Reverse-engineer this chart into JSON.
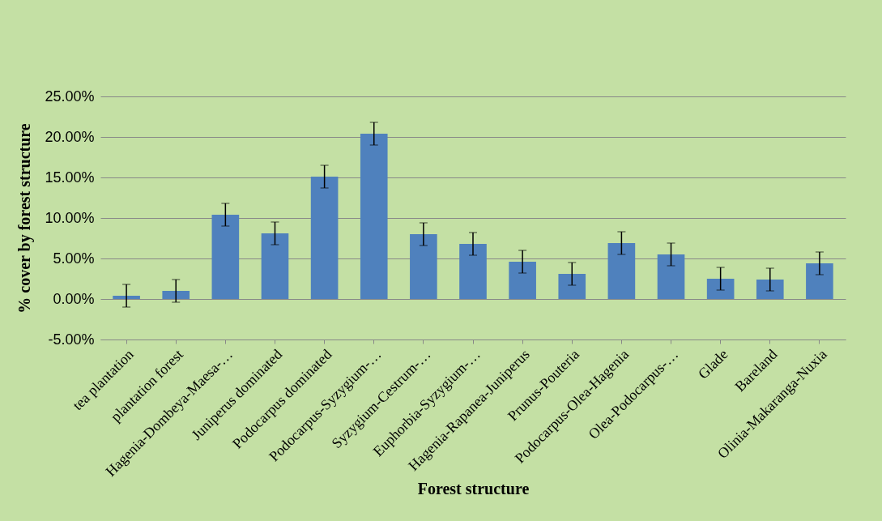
{
  "chart_data": {
    "type": "bar",
    "xlabel": "Forest structure",
    "ylabel": "% cover by forest structure",
    "categories": [
      "tea plantation",
      "plantation forest",
      "Hagenia-Dombeya-Maesa-…",
      "Juniperus dominated",
      "Podocarpus dominated",
      "Podocarpus-Syzygium-…",
      "Syzygium-Cestrum-…",
      "Euphorbia-Syzygium-…",
      "Hagenia-Rapanea-Juniperus",
      "Prunus-Pouteria",
      "Podocarpus-Olea-Hagenia",
      "Olea-Podocarpus-…",
      "Glade",
      "Bareland",
      "Olinia-Makaranga-Nuxia"
    ],
    "values": [
      0.4,
      1.0,
      10.4,
      8.1,
      15.1,
      20.4,
      8.0,
      6.8,
      4.6,
      3.1,
      6.9,
      5.5,
      2.5,
      2.4,
      4.4
    ],
    "errors": [
      1.4,
      1.4,
      1.4,
      1.4,
      1.4,
      1.4,
      1.4,
      1.4,
      1.4,
      1.4,
      1.4,
      1.4,
      1.4,
      1.4,
      1.4
    ],
    "color": "#4f81bd",
    "ylim": [
      -5,
      25
    ],
    "yticks": [
      {
        "value": -5,
        "label": "-5.00%"
      },
      {
        "value": 0,
        "label": "0.00%"
      },
      {
        "value": 5,
        "label": "5.00%"
      },
      {
        "value": 10,
        "label": "10.00%"
      },
      {
        "value": 15,
        "label": "15.00%"
      },
      {
        "value": 20,
        "label": "20.00%"
      },
      {
        "value": 25,
        "label": "25.00%"
      }
    ],
    "grid": "y"
  }
}
